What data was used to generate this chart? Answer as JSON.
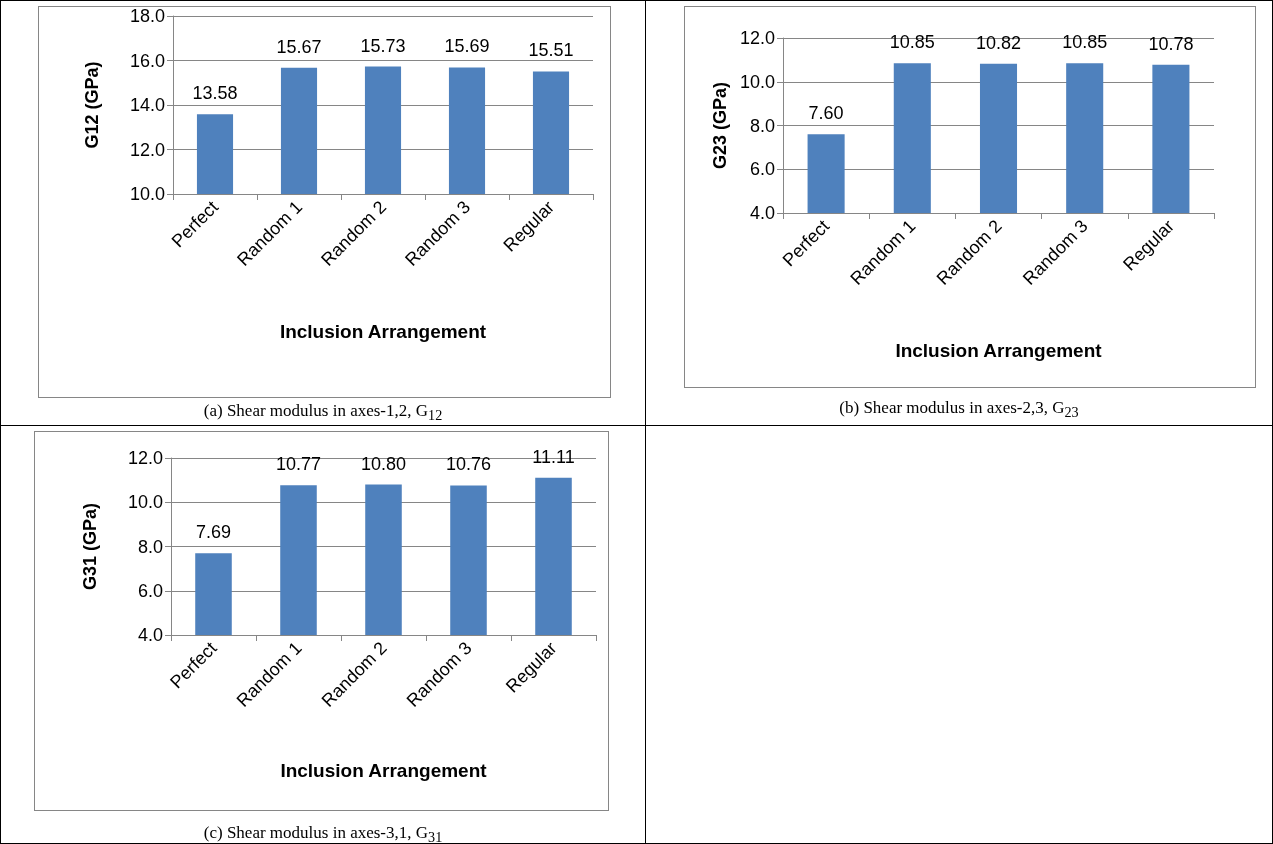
{
  "chart_data": [
    {
      "type": "bar",
      "categories": [
        "Perfect",
        "Random 1",
        "Random 2",
        "Random 3",
        "Regular"
      ],
      "values": [
        13.58,
        15.67,
        15.73,
        15.69,
        15.51
      ],
      "value_labels": [
        "13.58",
        "15.67",
        "15.73",
        "15.69",
        "15.51"
      ],
      "color": "#4f81bd",
      "xlabel": "Inclusion Arrangement",
      "ylabel": "G12 (GPa)",
      "ylim": [
        10,
        18
      ],
      "yticks": [
        {
          "value": 10,
          "label": "10.0"
        },
        {
          "value": 12,
          "label": "12.0"
        },
        {
          "value": 14,
          "label": "14.0"
        },
        {
          "value": 16,
          "label": "16.0"
        },
        {
          "value": 18,
          "label": "18.0"
        }
      ],
      "grid": "y",
      "annotations": [
        "(a) Shear modulus in axes-1,2, G$_{12}$"
      ]
    },
    {
      "type": "bar",
      "categories": [
        "Perfect",
        "Random 1",
        "Random 2",
        "Random 3",
        "Regular"
      ],
      "values": [
        7.6,
        10.85,
        10.82,
        10.85,
        10.78
      ],
      "value_labels": [
        "7.60",
        "10.85",
        "10.82",
        "10.85",
        "10.78"
      ],
      "color": "#4f81bd",
      "xlabel": "Inclusion Arrangement",
      "ylabel": "G23 (GPa)",
      "ylim": [
        4,
        12
      ],
      "yticks": [
        {
          "value": 4,
          "label": "4.0"
        },
        {
          "value": 6,
          "label": "6.0"
        },
        {
          "value": 8,
          "label": "8.0"
        },
        {
          "value": 10,
          "label": "10.0"
        },
        {
          "value": 12,
          "label": "12.0"
        }
      ],
      "grid": "y",
      "annotations": [
        "(b) Shear modulus in axes-2,3, G$_{23}$"
      ]
    },
    {
      "type": "bar",
      "categories": [
        "Perfect",
        "Random 1",
        "Random 2",
        "Random 3",
        "Regular"
      ],
      "values": [
        7.69,
        10.77,
        10.8,
        10.76,
        11.11
      ],
      "value_labels": [
        "7.69",
        "10.77",
        "10.80",
        "10.76",
        "11.11"
      ],
      "color": "#4f81bd",
      "xlabel": "Inclusion Arrangement",
      "ylabel": "G31 (GPa)",
      "ylim": [
        4,
        12
      ],
      "yticks": [
        {
          "value": 4,
          "label": "4.0"
        },
        {
          "value": 6,
          "label": "6.0"
        },
        {
          "value": 8,
          "label": "8.0"
        },
        {
          "value": 10,
          "label": "10.0"
        },
        {
          "value": 12,
          "label": "12.0"
        }
      ],
      "grid": "y",
      "annotations": [
        "(c) Shear modulus in axes-3,1, G$_{31}$"
      ]
    }
  ]
}
